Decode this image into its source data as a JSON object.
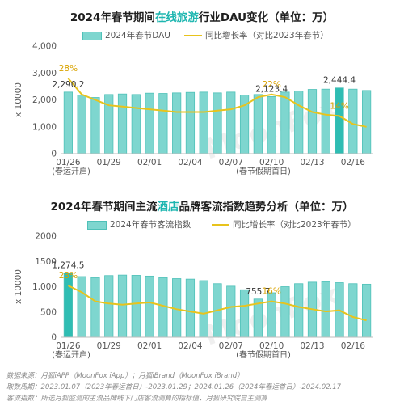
{
  "watermark": "MoonFox",
  "colors": {
    "bar": "#7ed6cf",
    "bar_stroke": "#4fc1b8",
    "bar_highlight": "#2fbdb3",
    "line": "#e8c31c",
    "highlight_text": "#1db6b0"
  },
  "chart_data": [
    {
      "type": "bar",
      "title_prefix": "2024年春节期间",
      "title_highlight": "在线旅游",
      "title_suffix": "行业DAU变化（单位：万）",
      "legend": {
        "bar": "2024年春节DAU",
        "line": "同比增长率（对比2023年春节）"
      },
      "ylabel": "x 10000",
      "ylim": [
        0,
        4000
      ],
      "yticks": [
        "0",
        "1,000",
        "2,000",
        "3,000",
        "4,000"
      ],
      "xticks": [
        "01/26",
        "01/29",
        "02/01",
        "02/04",
        "02/07",
        "02/10",
        "02/13",
        "02/16"
      ],
      "notes": [
        "(春运开启)",
        "(春节假期首日)"
      ],
      "categories": [
        "01/26",
        "01/27",
        "01/28",
        "01/29",
        "01/30",
        "01/31",
        "02/01",
        "02/02",
        "02/03",
        "02/04",
        "02/05",
        "02/06",
        "02/07",
        "02/08",
        "02/09",
        "02/10",
        "02/11",
        "02/12",
        "02/13",
        "02/14",
        "02/15",
        "02/16",
        "02/17"
      ],
      "values": [
        2290.2,
        2180,
        2090,
        2200,
        2220,
        2200,
        2250,
        2240,
        2260,
        2280,
        2290,
        2260,
        2290,
        2180,
        2200,
        2123.4,
        2290,
        2330,
        2390,
        2400,
        2444.4,
        2400,
        2350
      ],
      "highlight_index": 20,
      "labels": [
        {
          "index": 0,
          "text": "2,290.2"
        },
        {
          "index": 15,
          "text": "2,123.4"
        },
        {
          "index": 20,
          "text": "2,444.4"
        }
      ],
      "growth_rate": {
        "range": [
          0,
          40
        ],
        "values": [
          28,
          22,
          20,
          18,
          17.5,
          17,
          16.5,
          16,
          15.5,
          15.5,
          15.5,
          16,
          16.5,
          18,
          21,
          22,
          21,
          18,
          15.5,
          14.5,
          14,
          11,
          10
        ],
        "labels": [
          {
            "index": 0,
            "text": "28%"
          },
          {
            "index": 15,
            "text": "22%"
          },
          {
            "index": 20,
            "text": "14%"
          }
        ]
      }
    },
    {
      "type": "bar",
      "title_prefix": "2024年春节期间主流",
      "title_highlight": "酒店",
      "title_suffix": "品牌客流指数趋势分析（单位：万）",
      "legend": {
        "bar": "2024年春节客流指数",
        "line": "同比增长率（对比2023年春节）"
      },
      "ylabel": "x 10000",
      "ylim": [
        0,
        2000
      ],
      "yticks": [
        "0",
        "500",
        "1,000",
        "1500",
        "2000"
      ],
      "xticks": [
        "01/26",
        "01/29",
        "02/01",
        "02/04",
        "02/07",
        "02/10",
        "02/13",
        "02/16"
      ],
      "notes": [
        "(春运开启)",
        "(春节假期首日)"
      ],
      "categories": [
        "01/26",
        "01/27",
        "01/28",
        "01/29",
        "01/30",
        "01/31",
        "02/01",
        "02/02",
        "02/03",
        "02/04",
        "02/05",
        "02/06",
        "02/07",
        "02/08",
        "02/09",
        "02/10",
        "02/11",
        "02/12",
        "02/13",
        "02/14",
        "02/15",
        "02/16",
        "02/17"
      ],
      "values": [
        1274.5,
        1200,
        1180,
        1220,
        1230,
        1225,
        1210,
        1180,
        1160,
        1150,
        1120,
        1060,
        1010,
        940,
        755.7,
        880,
        1000,
        1060,
        1090,
        1100,
        1080,
        1060,
        1050
      ],
      "highlight_index": 0,
      "labels": [
        {
          "index": 0,
          "text": "1,274.5"
        },
        {
          "index": 14,
          "text": "755.7"
        }
      ],
      "growth_rate": {
        "range": [
          0,
          45
        ],
        "values": [
          23,
          20,
          16,
          15,
          14.5,
          15,
          15.5,
          14,
          12.5,
          11.5,
          10.5,
          12,
          13.5,
          14,
          15,
          16,
          15,
          13.5,
          12.5,
          11.5,
          12,
          9,
          7.5
        ],
        "labels": [
          {
            "index": 0,
            "text": "23%"
          },
          {
            "index": 15,
            "text": "16%"
          }
        ]
      }
    }
  ],
  "footer": {
    "line1": "数据来源：月狐iAPP（MoonFox iApp）；月狐iBrand（MoonFox iBrand）",
    "line2": "取数周期：2023.01.07（2023年春运首日）-2023.01.29；2024.01.26（2024年春运首日）-2024.02.17",
    "line3": "客流指数：所选月狐监测的主流品牌线下门店客流测算的指标值，月狐研究院自主测算"
  }
}
